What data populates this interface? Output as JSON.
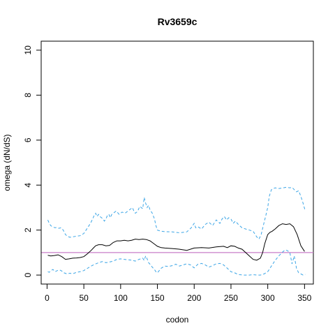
{
  "chart_data": {
    "type": "line",
    "title": "Rv3659c",
    "xlabel": "codon",
    "ylabel": "omega (dN/dS)",
    "xlim": [
      -8,
      362
    ],
    "ylim": [
      -0.4,
      10.4
    ],
    "xticks": [
      0,
      50,
      100,
      150,
      200,
      250,
      300,
      350
    ],
    "yticks": [
      0,
      2,
      4,
      6,
      8,
      10
    ],
    "reference_line": {
      "y": 1,
      "color": "#c87dc8"
    },
    "series": [
      {
        "role": "upper",
        "color": "#3ba5e6",
        "dash": "dashed",
        "x": [
          1,
          3,
          5,
          7,
          9,
          11,
          13,
          16,
          19,
          22,
          25,
          28,
          31,
          35,
          40,
          45,
          50,
          53,
          56,
          59,
          62,
          64,
          66,
          68,
          70,
          72,
          74,
          76,
          78,
          80,
          82,
          84,
          86,
          88,
          90,
          94,
          98,
          102,
          106,
          110,
          114,
          116,
          118,
          120,
          122,
          124,
          126,
          128,
          130,
          132,
          134,
          136,
          138,
          140,
          143,
          146,
          148,
          150,
          155,
          160,
          170,
          180,
          190,
          196,
          200,
          202,
          205,
          210,
          215,
          220,
          225,
          230,
          235,
          238,
          241,
          244,
          247,
          250,
          253,
          256,
          260,
          265,
          270,
          275,
          280,
          285,
          288,
          291,
          294,
          297,
          300,
          302,
          305,
          310,
          315,
          320,
          325,
          330,
          333,
          336,
          339,
          342,
          345,
          348,
          351
        ],
        "y": [
          2.45,
          2.3,
          2.2,
          2.15,
          2.13,
          2.1,
          2.12,
          2.08,
          2.1,
          2.0,
          1.8,
          1.72,
          1.68,
          1.7,
          1.73,
          1.75,
          1.85,
          2.0,
          2.15,
          2.3,
          2.5,
          2.65,
          2.75,
          2.6,
          2.7,
          2.6,
          2.55,
          2.5,
          2.4,
          2.5,
          2.65,
          2.7,
          2.55,
          2.7,
          2.75,
          2.85,
          2.7,
          2.8,
          2.75,
          2.85,
          2.95,
          3.0,
          2.85,
          2.75,
          2.8,
          2.9,
          3.05,
          3.0,
          2.95,
          3.45,
          3.2,
          3.0,
          3.1,
          2.9,
          2.75,
          2.5,
          2.2,
          2.0,
          1.95,
          1.93,
          1.92,
          1.88,
          1.92,
          2.1,
          2.3,
          2.1,
          2.15,
          2.05,
          2.25,
          2.35,
          2.2,
          2.45,
          2.3,
          2.5,
          2.6,
          2.45,
          2.55,
          2.5,
          2.3,
          2.4,
          2.25,
          2.1,
          2.05,
          2.0,
          1.95,
          1.7,
          1.6,
          1.8,
          2.2,
          2.6,
          3.0,
          3.5,
          3.8,
          3.88,
          3.85,
          3.87,
          3.9,
          3.88,
          3.9,
          3.8,
          3.7,
          3.75,
          3.5,
          3.2,
          2.85
        ]
      },
      {
        "role": "estimate",
        "color": "#000000",
        "dash": "solid",
        "x": [
          1,
          5,
          10,
          15,
          20,
          25,
          30,
          35,
          40,
          45,
          50,
          55,
          60,
          63,
          66,
          70,
          75,
          80,
          85,
          90,
          95,
          100,
          105,
          110,
          115,
          120,
          125,
          130,
          135,
          140,
          145,
          150,
          155,
          160,
          170,
          180,
          190,
          200,
          210,
          220,
          230,
          240,
          245,
          250,
          255,
          260,
          265,
          270,
          275,
          280,
          285,
          290,
          293,
          296,
          300,
          303,
          306,
          310,
          315,
          320,
          325,
          330,
          335,
          340,
          345,
          350
        ],
        "y": [
          0.88,
          0.85,
          0.87,
          0.9,
          0.82,
          0.7,
          0.72,
          0.75,
          0.76,
          0.78,
          0.82,
          0.95,
          1.1,
          1.2,
          1.3,
          1.35,
          1.35,
          1.3,
          1.32,
          1.45,
          1.52,
          1.52,
          1.55,
          1.52,
          1.55,
          1.6,
          1.58,
          1.6,
          1.58,
          1.52,
          1.4,
          1.28,
          1.22,
          1.2,
          1.18,
          1.15,
          1.1,
          1.2,
          1.22,
          1.2,
          1.25,
          1.28,
          1.22,
          1.3,
          1.28,
          1.2,
          1.15,
          1.0,
          0.85,
          0.7,
          0.66,
          0.75,
          1.0,
          1.4,
          1.8,
          1.9,
          1.95,
          2.05,
          2.2,
          2.28,
          2.25,
          2.28,
          2.15,
          1.8,
          1.3,
          1.05
        ]
      },
      {
        "role": "lower",
        "color": "#3ba5e6",
        "dash": "dashed",
        "x": [
          1,
          3,
          5,
          8,
          11,
          14,
          17,
          20,
          23,
          27,
          31,
          35,
          40,
          45,
          50,
          55,
          60,
          65,
          70,
          75,
          80,
          85,
          90,
          95,
          100,
          105,
          110,
          115,
          120,
          125,
          130,
          132,
          134,
          136,
          138,
          140,
          143,
          146,
          148,
          150,
          155,
          160,
          165,
          170,
          175,
          180,
          185,
          190,
          195,
          200,
          205,
          210,
          215,
          220,
          225,
          230,
          235,
          240,
          245,
          250,
          255,
          258,
          261,
          264,
          267,
          270,
          275,
          280,
          285,
          290,
          295,
          300,
          305,
          310,
          315,
          318,
          321,
          324,
          327,
          330,
          333,
          336,
          339,
          342,
          345,
          348,
          351
        ],
        "y": [
          0.15,
          0.12,
          0.2,
          0.25,
          0.15,
          0.2,
          0.23,
          0.18,
          0.1,
          0.05,
          0.08,
          0.06,
          0.12,
          0.15,
          0.2,
          0.3,
          0.4,
          0.48,
          0.55,
          0.6,
          0.55,
          0.58,
          0.62,
          0.7,
          0.72,
          0.7,
          0.68,
          0.66,
          0.62,
          0.7,
          0.75,
          0.65,
          0.85,
          0.72,
          0.55,
          0.48,
          0.35,
          0.25,
          0.15,
          0.1,
          0.3,
          0.4,
          0.38,
          0.42,
          0.48,
          0.4,
          0.45,
          0.5,
          0.45,
          0.32,
          0.48,
          0.52,
          0.45,
          0.35,
          0.42,
          0.5,
          0.52,
          0.45,
          0.3,
          0.15,
          0.1,
          0.05,
          0.02,
          0.01,
          0.0,
          0.0,
          0.0,
          0.02,
          0.0,
          0.0,
          0.05,
          0.15,
          0.4,
          0.65,
          0.85,
          0.95,
          1.05,
          1.12,
          1.08,
          1.0,
          0.5,
          0.85,
          0.3,
          0.1,
          0.05,
          0.0,
          0.03
        ]
      }
    ]
  }
}
